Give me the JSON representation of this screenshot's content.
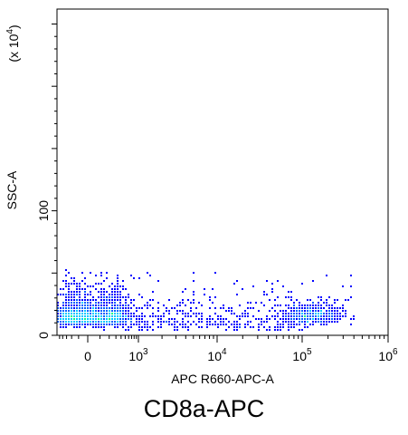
{
  "chart_data": {
    "type": "scatter",
    "style": "flow-cytometry-density-dot-plot",
    "title": "CD8a-APC",
    "xlabel": "APC R660-APC-A",
    "ylabel": "SSC-A",
    "y_multiplier_label": "(x 10⁴)",
    "x_scale": "biexponential",
    "x_ticks": [
      {
        "value": 0,
        "base": "0",
        "exp": ""
      },
      {
        "value": 1000,
        "base": "10",
        "exp": "3"
      },
      {
        "value": 10000,
        "base": "10",
        "exp": "4"
      },
      {
        "value": 100000,
        "base": "10",
        "exp": "5"
      },
      {
        "value": 1000000,
        "base": "10",
        "exp": "6"
      }
    ],
    "xlim": [
      -600,
      1000000
    ],
    "y_ticks": [
      {
        "value": 0,
        "label": "0"
      },
      {
        "value": 100,
        "label": "100"
      }
    ],
    "ylim": [
      0,
      262
    ],
    "grid": false,
    "legend": "none",
    "populations": [
      {
        "name_hint": "negative",
        "center_x": 20,
        "center_y": 10,
        "spread_x": 260,
        "spread_y": 9,
        "count": 1900,
        "peak_color": "#f0f000"
      },
      {
        "name_hint": "positive",
        "center_x": 130000,
        "center_y": 12,
        "spread_x": 0.18,
        "spread_y": 6,
        "count": 550,
        "peak_color": "#00d0ff"
      }
    ],
    "density_colors": [
      "#0000ff",
      "#0060ff",
      "#00c8ff",
      "#00ff80",
      "#f0f000"
    ]
  }
}
